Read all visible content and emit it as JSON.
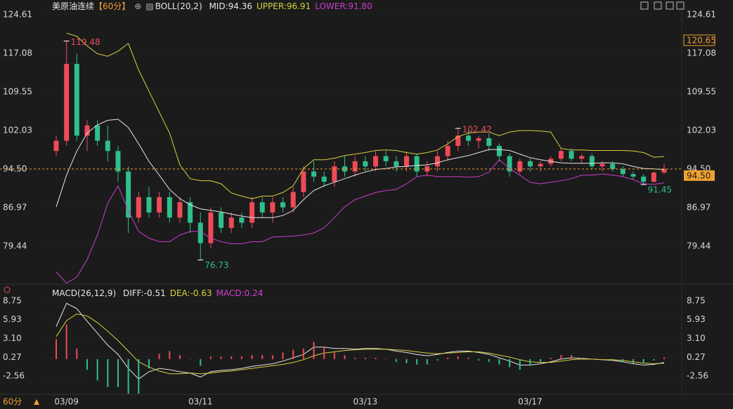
{
  "chart_data": [
    {
      "type": "candlestick",
      "title": "美原油连续",
      "period": "【60分】",
      "indicator": "BOLL(20,2)",
      "period_selector": "60分",
      "categories": [
        null,
        "03/09",
        null,
        null,
        null,
        null,
        null,
        null,
        null,
        null,
        null,
        null,
        null,
        null,
        "03/11",
        null,
        null,
        null,
        null,
        null,
        null,
        null,
        null,
        null,
        null,
        null,
        null,
        null,
        null,
        null,
        "03/13",
        null,
        null,
        null,
        null,
        null,
        null,
        null,
        null,
        null,
        null,
        null,
        null,
        null,
        null,
        null,
        "03/17",
        null,
        null,
        null,
        null,
        null,
        null,
        null,
        null,
        null,
        null,
        null,
        null,
        null
      ],
      "open": [
        98,
        100,
        115,
        101,
        103,
        100,
        98,
        94,
        85,
        89,
        86,
        89,
        85,
        88,
        84,
        80,
        86,
        83,
        85,
        84,
        88,
        86,
        88,
        87,
        90,
        94,
        93,
        92,
        95,
        94,
        96,
        95,
        97,
        96,
        95,
        97,
        94,
        95,
        97,
        99,
        101,
        100,
        100.5,
        99,
        97,
        94,
        96,
        95,
        95.5,
        96.5,
        98,
        96.5,
        97,
        95,
        95.5,
        94.5,
        93.5,
        93,
        92,
        93.8
      ],
      "high": [
        101,
        119.48,
        117,
        104,
        104,
        103,
        99,
        95,
        90,
        91,
        90,
        90,
        89,
        89,
        86,
        87,
        87,
        86,
        86,
        89,
        89,
        89,
        89,
        91,
        95,
        96,
        94,
        96,
        97,
        97,
        97,
        98,
        98,
        97,
        98,
        97.5,
        96,
        98,
        100,
        102.42,
        102,
        101,
        101.5,
        99.5,
        97.5,
        96.5,
        96.5,
        96,
        97,
        98.5,
        98.5,
        97.5,
        97.5,
        96,
        96,
        95,
        94,
        93.5,
        94,
        95.5
      ],
      "low": [
        97,
        99,
        100,
        98,
        99,
        96,
        92,
        82,
        84,
        85,
        85,
        84,
        84,
        82,
        76.73,
        79,
        82,
        82,
        83,
        83,
        85,
        84,
        86,
        86,
        89,
        92,
        91,
        91,
        93,
        93,
        94,
        94,
        95,
        94,
        94,
        93,
        93,
        94,
        96,
        98,
        99,
        98.5,
        98,
        96,
        93,
        93.5,
        94,
        94,
        95,
        96,
        96,
        95.5,
        94.5,
        94,
        94,
        93,
        92.5,
        91.45,
        91.8,
        93.5
      ],
      "close": [
        100,
        115,
        101,
        103,
        100,
        98,
        94,
        85,
        89,
        86,
        89,
        85,
        88,
        84,
        80,
        86,
        83,
        85,
        84,
        88,
        86,
        88,
        87,
        90,
        94,
        93,
        92,
        95,
        94,
        96,
        95,
        97,
        96,
        95,
        97,
        94,
        95,
        97,
        99,
        101,
        100,
        100.5,
        99,
        97,
        94,
        96,
        95,
        95.5,
        96.5,
        98,
        96.5,
        97,
        95,
        95.5,
        94.5,
        93.5,
        93,
        92,
        93.8,
        94.5
      ],
      "up_color": "#ee4b57",
      "down_color": "#2fbf8a",
      "series": [
        {
          "name": "MID:94.36",
          "color": "#e6e6e6",
          "values": [
            87.1,
            93.3,
            98,
            101.5,
            103.1,
            104,
            104.2,
            102.6,
            99.4,
            96,
            93.3,
            90.5,
            88.7,
            87.5,
            86.7,
            86.4,
            86.1,
            85.7,
            85.3,
            85,
            85,
            85,
            85.4,
            86.4,
            88.5,
            90.3,
            91.2,
            91.9,
            92.6,
            93.3,
            93.9,
            94.4,
            94.6,
            94.9,
            95,
            95.2,
            95.3,
            95.7,
            96.3,
            96.7,
            97.1,
            97.7,
            98.3,
            98.3,
            98.1,
            97.4,
            96.7,
            96.3,
            96,
            95.7,
            95.6,
            95.6,
            95.6,
            95.7,
            95.7,
            95.5,
            95,
            94.6,
            94.5,
            94.36
          ]
        },
        {
          "name": "UPPER:96.91",
          "color": "#d8d23a",
          "values": [
            null,
            121,
            120.4,
            118.5,
            117,
            116.5,
            117.5,
            119,
            113.8,
            109.7,
            105.6,
            101.5,
            95.3,
            92.6,
            92.2,
            92.2,
            91.6,
            89.8,
            89.2,
            88.7,
            89.2,
            89.2,
            89.9,
            91.2,
            94.6,
            96.3,
            96.3,
            96.6,
            97.1,
            97.4,
            97.7,
            98.1,
            98.2,
            98.1,
            97.7,
            97.4,
            97.7,
            98.2,
            99.4,
            100.8,
            101.5,
            101.7,
            101.7,
            101,
            101.7,
            102,
            102,
            101.9,
            101.7,
            98.5,
            98.2,
            98.2,
            98.1,
            98.1,
            98.1,
            98.1,
            98,
            97.7,
            96.8,
            96.91
          ]
        },
        {
          "name": "LOWER:91.80",
          "color": "#c83fc8",
          "values": [
            74.4,
            72.2,
            73.4,
            76.8,
            81.6,
            87.8,
            91.2,
            86.4,
            82.3,
            81,
            80.3,
            80.3,
            81.6,
            82.3,
            82.3,
            81,
            80.3,
            79.9,
            79.9,
            80.3,
            80.3,
            81.2,
            81.3,
            81.4,
            81.6,
            82,
            83,
            85,
            87.1,
            88.5,
            89.2,
            89.9,
            90.3,
            90.5,
            91.6,
            93,
            93.3,
            93,
            93,
            93,
            92.9,
            93,
            93.9,
            96.3,
            94.6,
            93.3,
            91.9,
            91.6,
            91.9,
            92.2,
            92.6,
            93.3,
            93.3,
            93.5,
            93.3,
            93,
            92.4,
            91.6,
            91.5,
            91.8
          ]
        }
      ],
      "extremes": [
        {
          "value": 119.48,
          "at": "high"
        },
        {
          "value": 76.73,
          "at": "low"
        },
        {
          "value": 102.42,
          "at": "high"
        },
        {
          "value": 91.45,
          "at": "low"
        }
      ],
      "last_price": {
        "value": 94.5,
        "label": "94.50"
      },
      "marker_price": {
        "value": 120.65,
        "label": "120.65"
      },
      "ylim": [
        71.6,
        126.8
      ],
      "yticks": [
        124.61,
        117.08,
        109.55,
        102.03,
        {
          "value": 94.5,
          "label": "94.50"
        },
        86.97,
        79.44
      ],
      "grid": true
    },
    {
      "type": "macd",
      "title": "MACD(26,12,9)",
      "up_color": "#ee4b57",
      "down_color": "#2fbf8a",
      "series": [
        {
          "name": "DIFF:-0.51",
          "color": "#e6e6e6",
          "values": [
            4.9,
            8.4,
            7.6,
            5.7,
            3.9,
            2.1,
            0.7,
            -1.4,
            -3.0,
            -1.9,
            -1.4,
            -1.6,
            -1.9,
            -2.1,
            -2.7,
            -1.9,
            -1.7,
            -1.6,
            -1.4,
            -1.1,
            -0.9,
            -0.7,
            -0.3,
            0.2,
            0.7,
            1.8,
            1.8,
            1.6,
            1.6,
            1.5,
            1.6,
            1.6,
            1.5,
            1.2,
            1.0,
            0.7,
            0.5,
            0.7,
            1.0,
            1.2,
            1.2,
            1.0,
            0.7,
            0.2,
            -0.3,
            -0.9,
            -0.9,
            -0.7,
            -0.4,
            0.0,
            0.2,
            0.1,
            0.0,
            -0.1,
            -0.2,
            -0.4,
            -0.7,
            -0.9,
            -0.8,
            -0.51
          ]
        },
        {
          "name": "DEA:-0.63",
          "color": "#d8d23a",
          "values": [
            3.4,
            5.8,
            6.8,
            6.5,
            5.5,
            4.2,
            2.8,
            1.2,
            -0.4,
            -1.2,
            -1.8,
            -2.2,
            -2.2,
            -2.1,
            -2.2,
            -2.1,
            -1.9,
            -1.8,
            -1.6,
            -1.4,
            -1.2,
            -1.0,
            -0.8,
            -0.5,
            -0.1,
            0.5,
            0.9,
            1.1,
            1.3,
            1.4,
            1.5,
            1.5,
            1.5,
            1.4,
            1.3,
            1.1,
            0.9,
            0.8,
            0.9,
            1.0,
            1.1,
            1.1,
            0.9,
            0.6,
            0.3,
            -0.1,
            -0.4,
            -0.5,
            -0.5,
            -0.3,
            -0.1,
            0.0,
            0.0,
            -0.1,
            -0.1,
            -0.2,
            -0.4,
            -0.6,
            -0.7,
            -0.63
          ]
        },
        {
          "name": "MACD:0.24",
          "color": "#d040d0",
          "type": "histogram",
          "values": [
            3.0,
            5.2,
            1.6,
            -1.6,
            -3.2,
            -4.2,
            -4.2,
            -5.2,
            -5.2,
            -1.4,
            0.8,
            1.2,
            0.6,
            0,
            -1.0,
            0.4,
            0.4,
            0.4,
            0.4,
            0.6,
            0.6,
            0.6,
            1.0,
            1.4,
            1.6,
            2.6,
            1.8,
            1.0,
            0.6,
            0.2,
            0.2,
            0.2,
            0,
            -0.4,
            -0.6,
            -0.8,
            -0.8,
            -0.2,
            0.2,
            0.4,
            0.2,
            -0.2,
            -0.4,
            -0.8,
            -1.2,
            -1.6,
            -1.0,
            -0.4,
            0.2,
            0.6,
            0.6,
            0.2,
            0,
            0,
            -0.2,
            -0.4,
            -0.6,
            -0.6,
            -0.2,
            0.24
          ]
        }
      ],
      "ylim": [
        -5.4,
        10.97
      ],
      "yticks": [
        8.75,
        5.93,
        {
          "value": 3.1,
          "label": "3.10"
        },
        0.27,
        -2.56
      ],
      "grid": true
    }
  ]
}
